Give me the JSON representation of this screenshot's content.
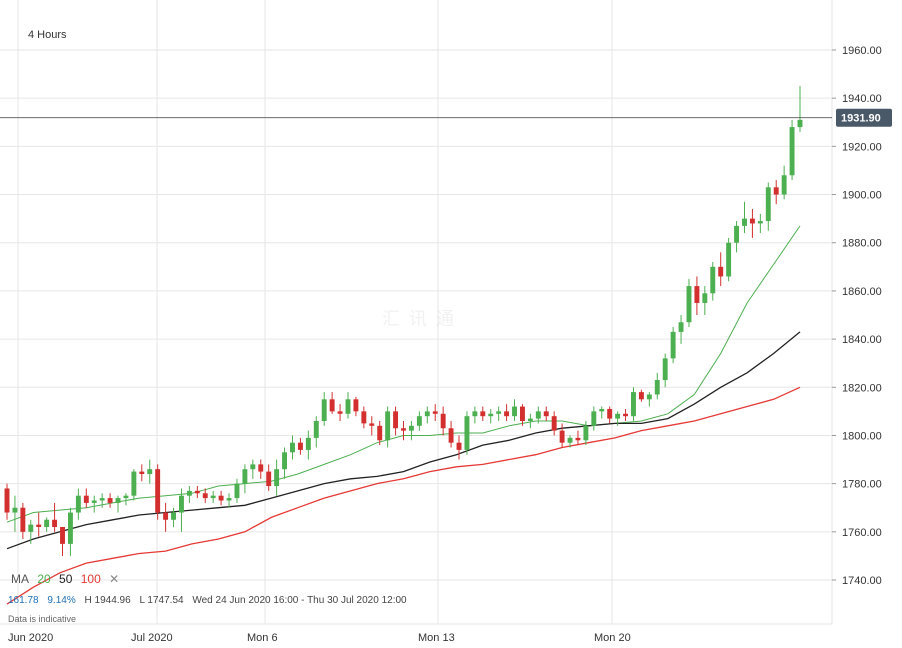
{
  "chart_data": {
    "type": "candlestick",
    "title": "4 Hours",
    "ylim": [
      1730,
      1970
    ],
    "y_ticks": [
      "1960.00",
      "1940.00",
      "1920.00",
      "1900.00",
      "1880.00",
      "1860.00",
      "1840.00",
      "1820.00",
      "1800.00",
      "1780.00",
      "1760.00",
      "1740.00"
    ],
    "x_ticks": [
      "Jun 2020",
      "Jul 2020",
      "Mon 6",
      "Mon 13",
      "Mon 20"
    ],
    "current_price": "1931.90",
    "moving_averages": [
      {
        "name": "20",
        "color": "#4caf50",
        "values": [
          1764,
          1768,
          1769,
          1770,
          1772,
          1774,
          1775,
          1776,
          1779,
          1780,
          1781,
          1784,
          1788,
          1792,
          1797,
          1800,
          1800,
          1801,
          1801,
          1804,
          1806,
          1806,
          1804,
          1805,
          1806,
          1809,
          1817,
          1834,
          1855,
          1871,
          1887
        ]
      },
      {
        "name": "50",
        "color": "#222222",
        "values": [
          1753,
          1757,
          1760,
          1763,
          1765,
          1767,
          1768,
          1769,
          1770,
          1771,
          1774,
          1777,
          1780,
          1782,
          1783,
          1785,
          1789,
          1792,
          1796,
          1798,
          1801,
          1803,
          1804,
          1805,
          1805,
          1807,
          1813,
          1820,
          1826,
          1834,
          1843
        ]
      },
      {
        "name": "100",
        "color": "#e53935",
        "values": [
          1730,
          1737,
          1743,
          1747,
          1749,
          1751,
          1752,
          1755,
          1757,
          1760,
          1766,
          1770,
          1774,
          1777,
          1780,
          1782,
          1785,
          1787,
          1788,
          1790,
          1792,
          1795,
          1797,
          1799,
          1802,
          1804,
          1806,
          1809,
          1812,
          1815,
          1820
        ]
      }
    ],
    "candles": [
      [
        1778,
        1780,
        1765,
        1768
      ],
      [
        1768,
        1775,
        1760,
        1770
      ],
      [
        1770,
        1772,
        1757,
        1760
      ],
      [
        1760,
        1765,
        1755,
        1763
      ],
      [
        1763,
        1768,
        1758,
        1762
      ],
      [
        1762,
        1766,
        1760,
        1765
      ],
      [
        1765,
        1772,
        1760,
        1762
      ],
      [
        1762,
        1762,
        1750,
        1755
      ],
      [
        1755,
        1770,
        1750,
        1768
      ],
      [
        1768,
        1778,
        1765,
        1775
      ],
      [
        1775,
        1778,
        1770,
        1772
      ],
      [
        1772,
        1775,
        1768,
        1773
      ],
      [
        1773,
        1776,
        1770,
        1774
      ],
      [
        1774,
        1776,
        1770,
        1772
      ],
      [
        1772,
        1775,
        1768,
        1774
      ],
      [
        1774,
        1776,
        1771,
        1775
      ],
      [
        1775,
        1786,
        1773,
        1785
      ],
      [
        1785,
        1788,
        1781,
        1784
      ],
      [
        1784,
        1790,
        1780,
        1786
      ],
      [
        1786,
        1788,
        1765,
        1768
      ],
      [
        1768,
        1772,
        1760,
        1765
      ],
      [
        1765,
        1770,
        1762,
        1768
      ],
      [
        1768,
        1778,
        1760,
        1775
      ],
      [
        1775,
        1779,
        1772,
        1777
      ],
      [
        1777,
        1779,
        1774,
        1776
      ],
      [
        1776,
        1778,
        1772,
        1774
      ],
      [
        1774,
        1777,
        1772,
        1775
      ],
      [
        1775,
        1777,
        1771,
        1773
      ],
      [
        1773,
        1776,
        1770,
        1774
      ],
      [
        1774,
        1782,
        1772,
        1780
      ],
      [
        1780,
        1788,
        1776,
        1786
      ],
      [
        1786,
        1790,
        1782,
        1788
      ],
      [
        1788,
        1790,
        1782,
        1785
      ],
      [
        1785,
        1788,
        1777,
        1779
      ],
      [
        1779,
        1790,
        1775,
        1786
      ],
      [
        1786,
        1795,
        1782,
        1793
      ],
      [
        1793,
        1800,
        1790,
        1797
      ],
      [
        1797,
        1799,
        1792,
        1794
      ],
      [
        1794,
        1802,
        1790,
        1799
      ],
      [
        1799,
        1808,
        1795,
        1806
      ],
      [
        1806,
        1818,
        1804,
        1815
      ],
      [
        1815,
        1818,
        1809,
        1810
      ],
      [
        1810,
        1813,
        1806,
        1809
      ],
      [
        1809,
        1818,
        1807,
        1815
      ],
      [
        1815,
        1816,
        1808,
        1810
      ],
      [
        1810,
        1812,
        1803,
        1805
      ],
      [
        1805,
        1808,
        1800,
        1804
      ],
      [
        1804,
        1806,
        1796,
        1798
      ],
      [
        1798,
        1812,
        1795,
        1810
      ],
      [
        1810,
        1812,
        1800,
        1803
      ],
      [
        1803,
        1806,
        1798,
        1802
      ],
      [
        1802,
        1806,
        1798,
        1804
      ],
      [
        1804,
        1810,
        1802,
        1808
      ],
      [
        1808,
        1812,
        1805,
        1810
      ],
      [
        1810,
        1813,
        1806,
        1809
      ],
      [
        1809,
        1812,
        1800,
        1803
      ],
      [
        1803,
        1806,
        1795,
        1797
      ],
      [
        1797,
        1800,
        1790,
        1794
      ],
      [
        1794,
        1810,
        1792,
        1808
      ],
      [
        1808,
        1812,
        1805,
        1810
      ],
      [
        1810,
        1812,
        1806,
        1808
      ],
      [
        1808,
        1811,
        1805,
        1809
      ],
      [
        1809,
        1812,
        1806,
        1810
      ],
      [
        1810,
        1813,
        1806,
        1808
      ],
      [
        1808,
        1815,
        1806,
        1812
      ],
      [
        1812,
        1813,
        1804,
        1806
      ],
      [
        1806,
        1809,
        1803,
        1807
      ],
      [
        1807,
        1812,
        1805,
        1810
      ],
      [
        1810,
        1812,
        1806,
        1808
      ],
      [
        1808,
        1810,
        1800,
        1802
      ],
      [
        1802,
        1805,
        1795,
        1797
      ],
      [
        1797,
        1800,
        1795,
        1799
      ],
      [
        1799,
        1802,
        1796,
        1798
      ],
      [
        1798,
        1806,
        1796,
        1804
      ],
      [
        1804,
        1812,
        1802,
        1810
      ],
      [
        1810,
        1812,
        1807,
        1811
      ],
      [
        1811,
        1812,
        1805,
        1807
      ],
      [
        1807,
        1810,
        1804,
        1809
      ],
      [
        1809,
        1811,
        1806,
        1808
      ],
      [
        1808,
        1820,
        1806,
        1818
      ],
      [
        1818,
        1819,
        1814,
        1815
      ],
      [
        1815,
        1818,
        1812,
        1817
      ],
      [
        1817,
        1826,
        1815,
        1823
      ],
      [
        1823,
        1834,
        1820,
        1832
      ],
      [
        1832,
        1845,
        1830,
        1843
      ],
      [
        1843,
        1850,
        1838,
        1847
      ],
      [
        1847,
        1865,
        1845,
        1862
      ],
      [
        1862,
        1866,
        1850,
        1855
      ],
      [
        1855,
        1862,
        1850,
        1859
      ],
      [
        1859,
        1872,
        1856,
        1870
      ],
      [
        1870,
        1876,
        1862,
        1866
      ],
      [
        1866,
        1882,
        1864,
        1880
      ],
      [
        1880,
        1889,
        1876,
        1887
      ],
      [
        1887,
        1897,
        1884,
        1890
      ],
      [
        1890,
        1894,
        1882,
        1888
      ],
      [
        1888,
        1892,
        1884,
        1889
      ],
      [
        1889,
        1905,
        1885,
        1903
      ],
      [
        1903,
        1906,
        1896,
        1900
      ],
      [
        1900,
        1912,
        1898,
        1908
      ],
      [
        1908,
        1931,
        1906,
        1928
      ],
      [
        1928,
        1945,
        1926,
        1931
      ]
    ]
  },
  "legend": {
    "label": "MA",
    "ma20": "20",
    "ma50": "50",
    "ma100": "100",
    "close_icon": "close-icon"
  },
  "stats": {
    "change": "161.78",
    "change_pct": "9.14%",
    "high": "H 1944.96",
    "low": "L 1747.54",
    "range": "Wed 24 Jun 2020 16:00 - Thu 30 Jul 2020 12:00"
  },
  "note": "Data is indicative",
  "colors": {
    "up": "#4caf50",
    "down": "#d32f2f",
    "price_tag": "#4a5968"
  }
}
